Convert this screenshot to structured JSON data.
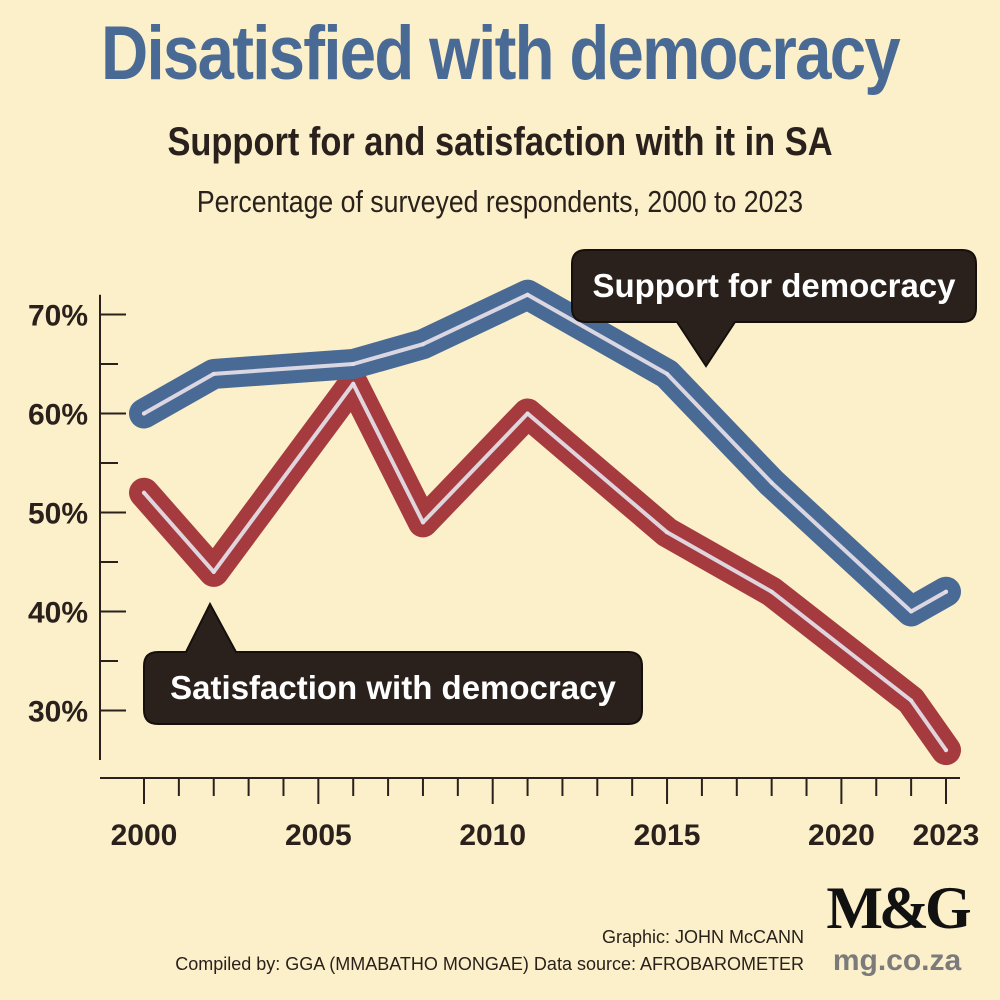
{
  "header": {
    "title": "Disatisfied with democracy",
    "subtitle": "Support for and satisfaction with it in SA",
    "subtitle2": "Percentage of surveyed respondents, 2000 to 2023"
  },
  "colors": {
    "title": "#4a6a96",
    "support": "#4a6a96",
    "satisfaction": "#a53b3e",
    "highlight": "#e3dde6",
    "callout": "#2a211d",
    "background": "#fbf0c9"
  },
  "chart_data": {
    "type": "line",
    "title": "Disatisfied with democracy",
    "subtitle": "Support for and satisfaction with it in SA",
    "xlabel": "",
    "ylabel": "",
    "xlim": [
      2000,
      2023
    ],
    "ylim": [
      25,
      75
    ],
    "yticks": [
      {
        "value": 30,
        "label": "30%"
      },
      {
        "value": 40,
        "label": "40%"
      },
      {
        "value": 50,
        "label": "50%"
      },
      {
        "value": 60,
        "label": "60%"
      },
      {
        "value": 70,
        "label": "70%"
      }
    ],
    "xticks": [
      {
        "value": 2000,
        "label": "2000"
      },
      {
        "value": 2005,
        "label": "2005"
      },
      {
        "value": 2010,
        "label": "2010"
      },
      {
        "value": 2015,
        "label": "2015"
      },
      {
        "value": 2020,
        "label": "2020"
      },
      {
        "value": 2023,
        "label": "2023"
      }
    ],
    "series": [
      {
        "name": "Support for democracy",
        "key": "support",
        "x": [
          2000,
          2002,
          2006,
          2008,
          2011,
          2015,
          2018,
          2022,
          2023
        ],
        "values": [
          60,
          64,
          65,
          67,
          72,
          64,
          53,
          40,
          42
        ]
      },
      {
        "name": "Satisfaction with democracy",
        "key": "satisfaction",
        "x": [
          2000,
          2002,
          2006,
          2008,
          2011,
          2015,
          2018,
          2022,
          2023
        ],
        "values": [
          52,
          44,
          63,
          49,
          60,
          48,
          42,
          31,
          26
        ]
      }
    ]
  },
  "credits": {
    "graphic": "Graphic: JOHN McCANN",
    "compiled": "Compiled by: GGA (MMABATHO MONGAE)  Data source: AFROBAROMETER"
  },
  "brand": {
    "logo": "M&G",
    "site": "mg.co.za"
  }
}
